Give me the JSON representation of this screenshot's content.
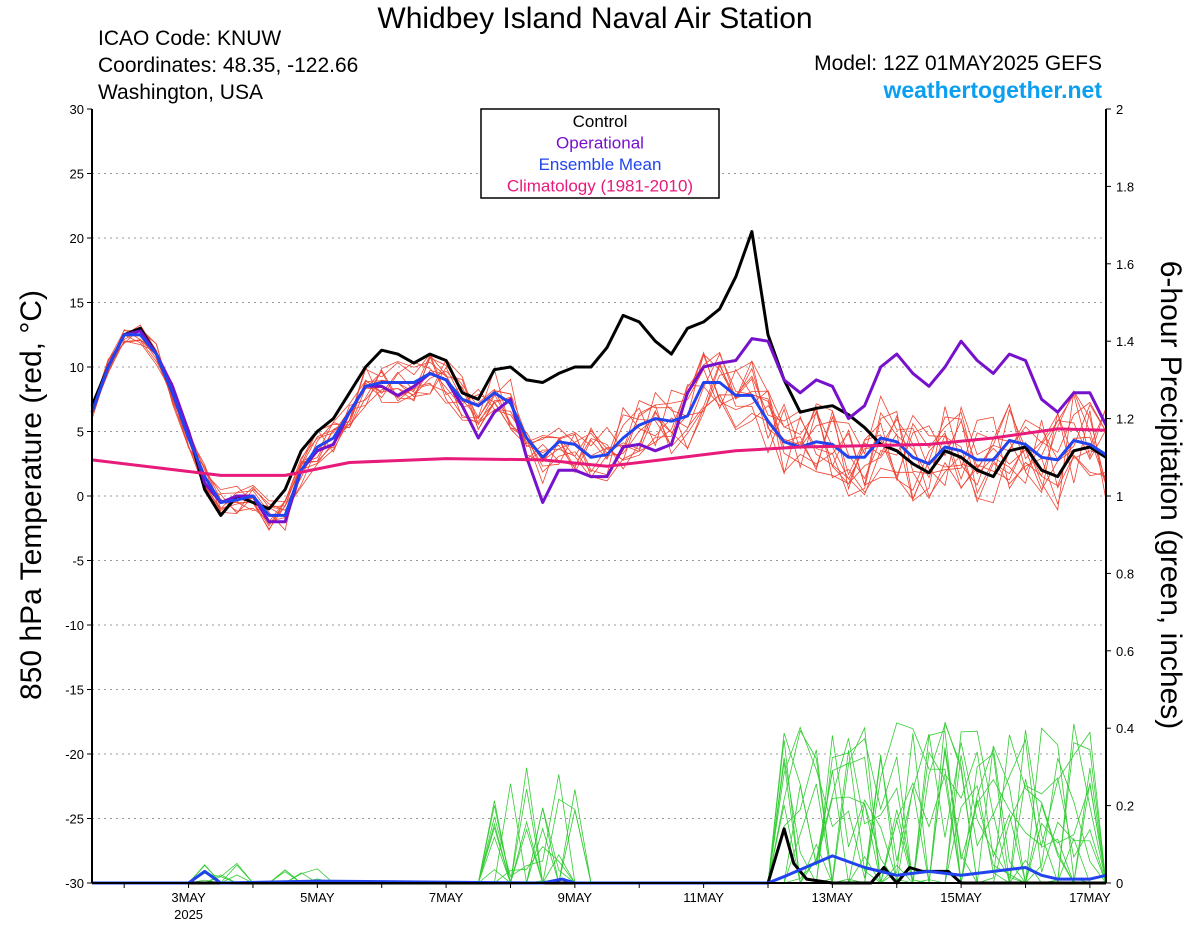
{
  "header": {
    "title": "Whidbey Island Naval Air Station",
    "icao": "ICAO Code: KNUW",
    "coords": "Coordinates: 48.35, -122.66",
    "location": "Washington, USA",
    "model": "Model: 12Z 01MAY2025 GEFS",
    "site": "weathertogether.net"
  },
  "colors": {
    "members_temp": "#ee4433",
    "members_precip": "#33cc33",
    "control": "#000000",
    "operational": "#7711cc",
    "ensemble_mean": "#2244ee",
    "climatology": "#e81a7a",
    "website": "#0a9ff0"
  },
  "chart_data": {
    "type": "line",
    "title": "Whidbey Island Naval Air Station",
    "ylabel_left": "850 hPa Temperature (red, °C)",
    "ylabel_right": "6-hour Precipitation (green, inches)",
    "x_unit": "days from 01MAY2025 00Z",
    "xlim": [
      1.5,
      17.25
    ],
    "ylim_left": [
      -30,
      30
    ],
    "ylim_right": [
      0,
      2
    ],
    "grid": "horizontal dotted",
    "left_ticks": [
      -30,
      -25,
      -20,
      -15,
      -10,
      -5,
      0,
      5,
      10,
      15,
      20,
      25,
      30
    ],
    "right_ticks": [
      "0",
      "0.2",
      "0.4",
      "0.6",
      "0.8",
      "1",
      "1.2",
      "1.4",
      "1.6",
      "1.8",
      "2"
    ],
    "x_ticks": [
      {
        "day": 3,
        "label": "3MAY",
        "sub": "2025"
      },
      {
        "day": 5,
        "label": "5MAY",
        "sub": ""
      },
      {
        "day": 7,
        "label": "7MAY",
        "sub": ""
      },
      {
        "day": 9,
        "label": "9MAY",
        "sub": ""
      },
      {
        "day": 11,
        "label": "11MAY",
        "sub": ""
      },
      {
        "day": 13,
        "label": "13MAY",
        "sub": ""
      },
      {
        "day": 15,
        "label": "15MAY",
        "sub": ""
      },
      {
        "day": 17,
        "label": "17MAY",
        "sub": ""
      }
    ],
    "legend": {
      "position": "top-center",
      "entries": [
        "Control",
        "Operational",
        "Ensemble Mean",
        "Climatology (1981-2010)"
      ]
    },
    "temp_series": [
      {
        "name": "Control",
        "x": [
          1.5,
          1.75,
          2,
          2.25,
          2.5,
          2.75,
          3,
          3.25,
          3.5,
          3.75,
          4,
          4.25,
          4.5,
          4.75,
          5,
          5.25,
          5.5,
          5.75,
          6,
          6.25,
          6.5,
          6.75,
          7,
          7.25,
          7.5,
          7.75,
          8,
          8.25,
          8.5,
          8.75,
          9,
          9.25,
          9.5,
          9.75,
          10,
          10.25,
          10.5,
          10.75,
          11,
          11.25,
          11.5,
          11.75,
          12,
          12.25,
          12.5,
          12.75,
          13,
          13.25,
          13.5,
          13.75,
          14,
          14.25,
          14.5,
          14.75,
          15,
          15.25,
          15.5,
          15.75,
          16,
          16.25,
          16.5,
          16.75,
          17,
          17.25
        ],
        "values": [
          7,
          10,
          12.5,
          13,
          11,
          8,
          5,
          0.5,
          -1.5,
          0,
          -0.5,
          -1,
          0.5,
          3.5,
          5,
          6,
          8,
          10,
          11.3,
          11,
          10.3,
          11,
          10.5,
          8,
          7.5,
          9.8,
          10,
          9,
          8.8,
          9.5,
          10,
          10,
          11.5,
          14,
          13.5,
          12,
          11,
          13,
          13.5,
          14.5,
          17,
          20.5,
          12.5,
          9,
          6.5,
          6.8,
          7,
          6.3,
          5.3,
          4,
          3.5,
          2.5,
          1.8,
          3.5,
          3,
          2,
          1.5,
          3.5,
          3.8,
          2,
          1.5,
          3.5,
          3.8,
          3
        ]
      },
      {
        "name": "Operational",
        "x": [
          1.5,
          1.75,
          2,
          2.25,
          2.5,
          2.75,
          3,
          3.25,
          3.5,
          3.75,
          4,
          4.25,
          4.5,
          4.75,
          5,
          5.25,
          5.5,
          5.75,
          6,
          6.25,
          6.5,
          6.75,
          7,
          7.25,
          7.5,
          7.75,
          8,
          8.25,
          8.5,
          8.75,
          9,
          9.25,
          9.5,
          9.75,
          10,
          10.25,
          10.5,
          10.75,
          11,
          11.25,
          11.5,
          11.75,
          12,
          12.25,
          12.5,
          12.75,
          13,
          13.25,
          13.5,
          13.75,
          14,
          14.25,
          14.5,
          14.75,
          15,
          15.25,
          15.5,
          15.75,
          16,
          16.25,
          16.5,
          16.75,
          17,
          17.25
        ],
        "values": [
          6.5,
          10,
          12.5,
          12.8,
          11,
          8.5,
          5,
          1,
          -0.5,
          0,
          0,
          -2,
          -2,
          2,
          3.5,
          4,
          6.5,
          8.5,
          8.5,
          7.8,
          8.5,
          9.5,
          9,
          7,
          4.5,
          6.5,
          7.5,
          3,
          -0.5,
          2,
          2,
          1.5,
          1.5,
          3.8,
          4,
          3.5,
          4,
          8,
          10,
          10.3,
          10.5,
          12.2,
          12,
          9,
          8,
          9,
          8.5,
          6,
          7,
          10,
          11,
          9.5,
          8.5,
          10,
          12,
          10.5,
          9.5,
          11,
          10.5,
          7.5,
          6.5,
          8,
          8,
          5.5
        ]
      },
      {
        "name": "Ensemble Mean",
        "x": [
          1.5,
          1.75,
          2,
          2.25,
          2.5,
          2.75,
          3,
          3.25,
          3.5,
          3.75,
          4,
          4.25,
          4.5,
          4.75,
          5,
          5.25,
          5.5,
          5.75,
          6,
          6.25,
          6.5,
          6.75,
          7,
          7.25,
          7.5,
          7.75,
          8,
          8.25,
          8.5,
          8.75,
          9,
          9.25,
          9.5,
          9.75,
          10,
          10.25,
          10.5,
          10.75,
          11,
          11.25,
          11.5,
          11.75,
          12,
          12.25,
          12.5,
          12.75,
          13,
          13.25,
          13.5,
          13.75,
          14,
          14.25,
          14.5,
          14.75,
          15,
          15.25,
          15.5,
          15.75,
          16,
          16.25,
          16.5,
          16.75,
          17,
          17.25
        ],
        "values": [
          6.5,
          10,
          12.5,
          12.5,
          11,
          8,
          4.5,
          1.5,
          -0.5,
          -0.3,
          0,
          -1.5,
          -1.5,
          2,
          3.8,
          4.5,
          6.5,
          8.5,
          8.8,
          8.8,
          8.8,
          9.5,
          9,
          7.5,
          7,
          8,
          7.2,
          4.5,
          3,
          4.2,
          4,
          3,
          3.2,
          4.5,
          5.5,
          6,
          5.8,
          6.2,
          8.8,
          8.8,
          7.8,
          7.8,
          5.8,
          4.2,
          3.8,
          4.2,
          4,
          3,
          3,
          4.5,
          4.2,
          3,
          2.5,
          3.8,
          3.5,
          2.8,
          2.8,
          4.3,
          4,
          3,
          2.8,
          4.3,
          4,
          3.2
        ]
      },
      {
        "name": "Climatology (1981-2010)",
        "x": [
          1.5,
          2.5,
          3.5,
          4.5,
          5.5,
          7,
          8.5,
          9.5,
          10.5,
          11.5,
          12.5,
          13.5,
          14.5,
          15.5,
          16.5,
          17.25
        ],
        "values": [
          2.8,
          2.2,
          1.6,
          1.6,
          2.6,
          2.9,
          2.8,
          2.3,
          2.9,
          3.5,
          3.8,
          3.9,
          4,
          4.5,
          5.2,
          5.1
        ]
      }
    ],
    "member_count": 12,
    "precip_series": [
      {
        "name": "Control",
        "x": [
          1.5,
          12,
          12.25,
          12.4,
          12.6,
          13,
          13.6,
          13.8,
          14,
          14.2,
          14.4,
          14.6,
          14.8,
          15,
          15.2,
          17.25
        ],
        "values": [
          0,
          0,
          0.14,
          0.05,
          0.01,
          0,
          0,
          0.04,
          0,
          0.04,
          0.03,
          0.03,
          0.03,
          0,
          0,
          0
        ]
      },
      {
        "name": "Ensemble Mean",
        "x": [
          1.5,
          3,
          3.25,
          3.5,
          5,
          8.5,
          8.8,
          9,
          12,
          12.3,
          13,
          13.5,
          14,
          14.5,
          15,
          15.5,
          16,
          16.25,
          16.5,
          17,
          17.25
        ],
        "values": [
          0,
          0,
          0.03,
          0,
          0.005,
          0,
          0.01,
          0,
          0,
          0.02,
          0.07,
          0.04,
          0.02,
          0.03,
          0.02,
          0.03,
          0.04,
          0.02,
          0.01,
          0.01,
          0.02
        ]
      }
    ]
  }
}
